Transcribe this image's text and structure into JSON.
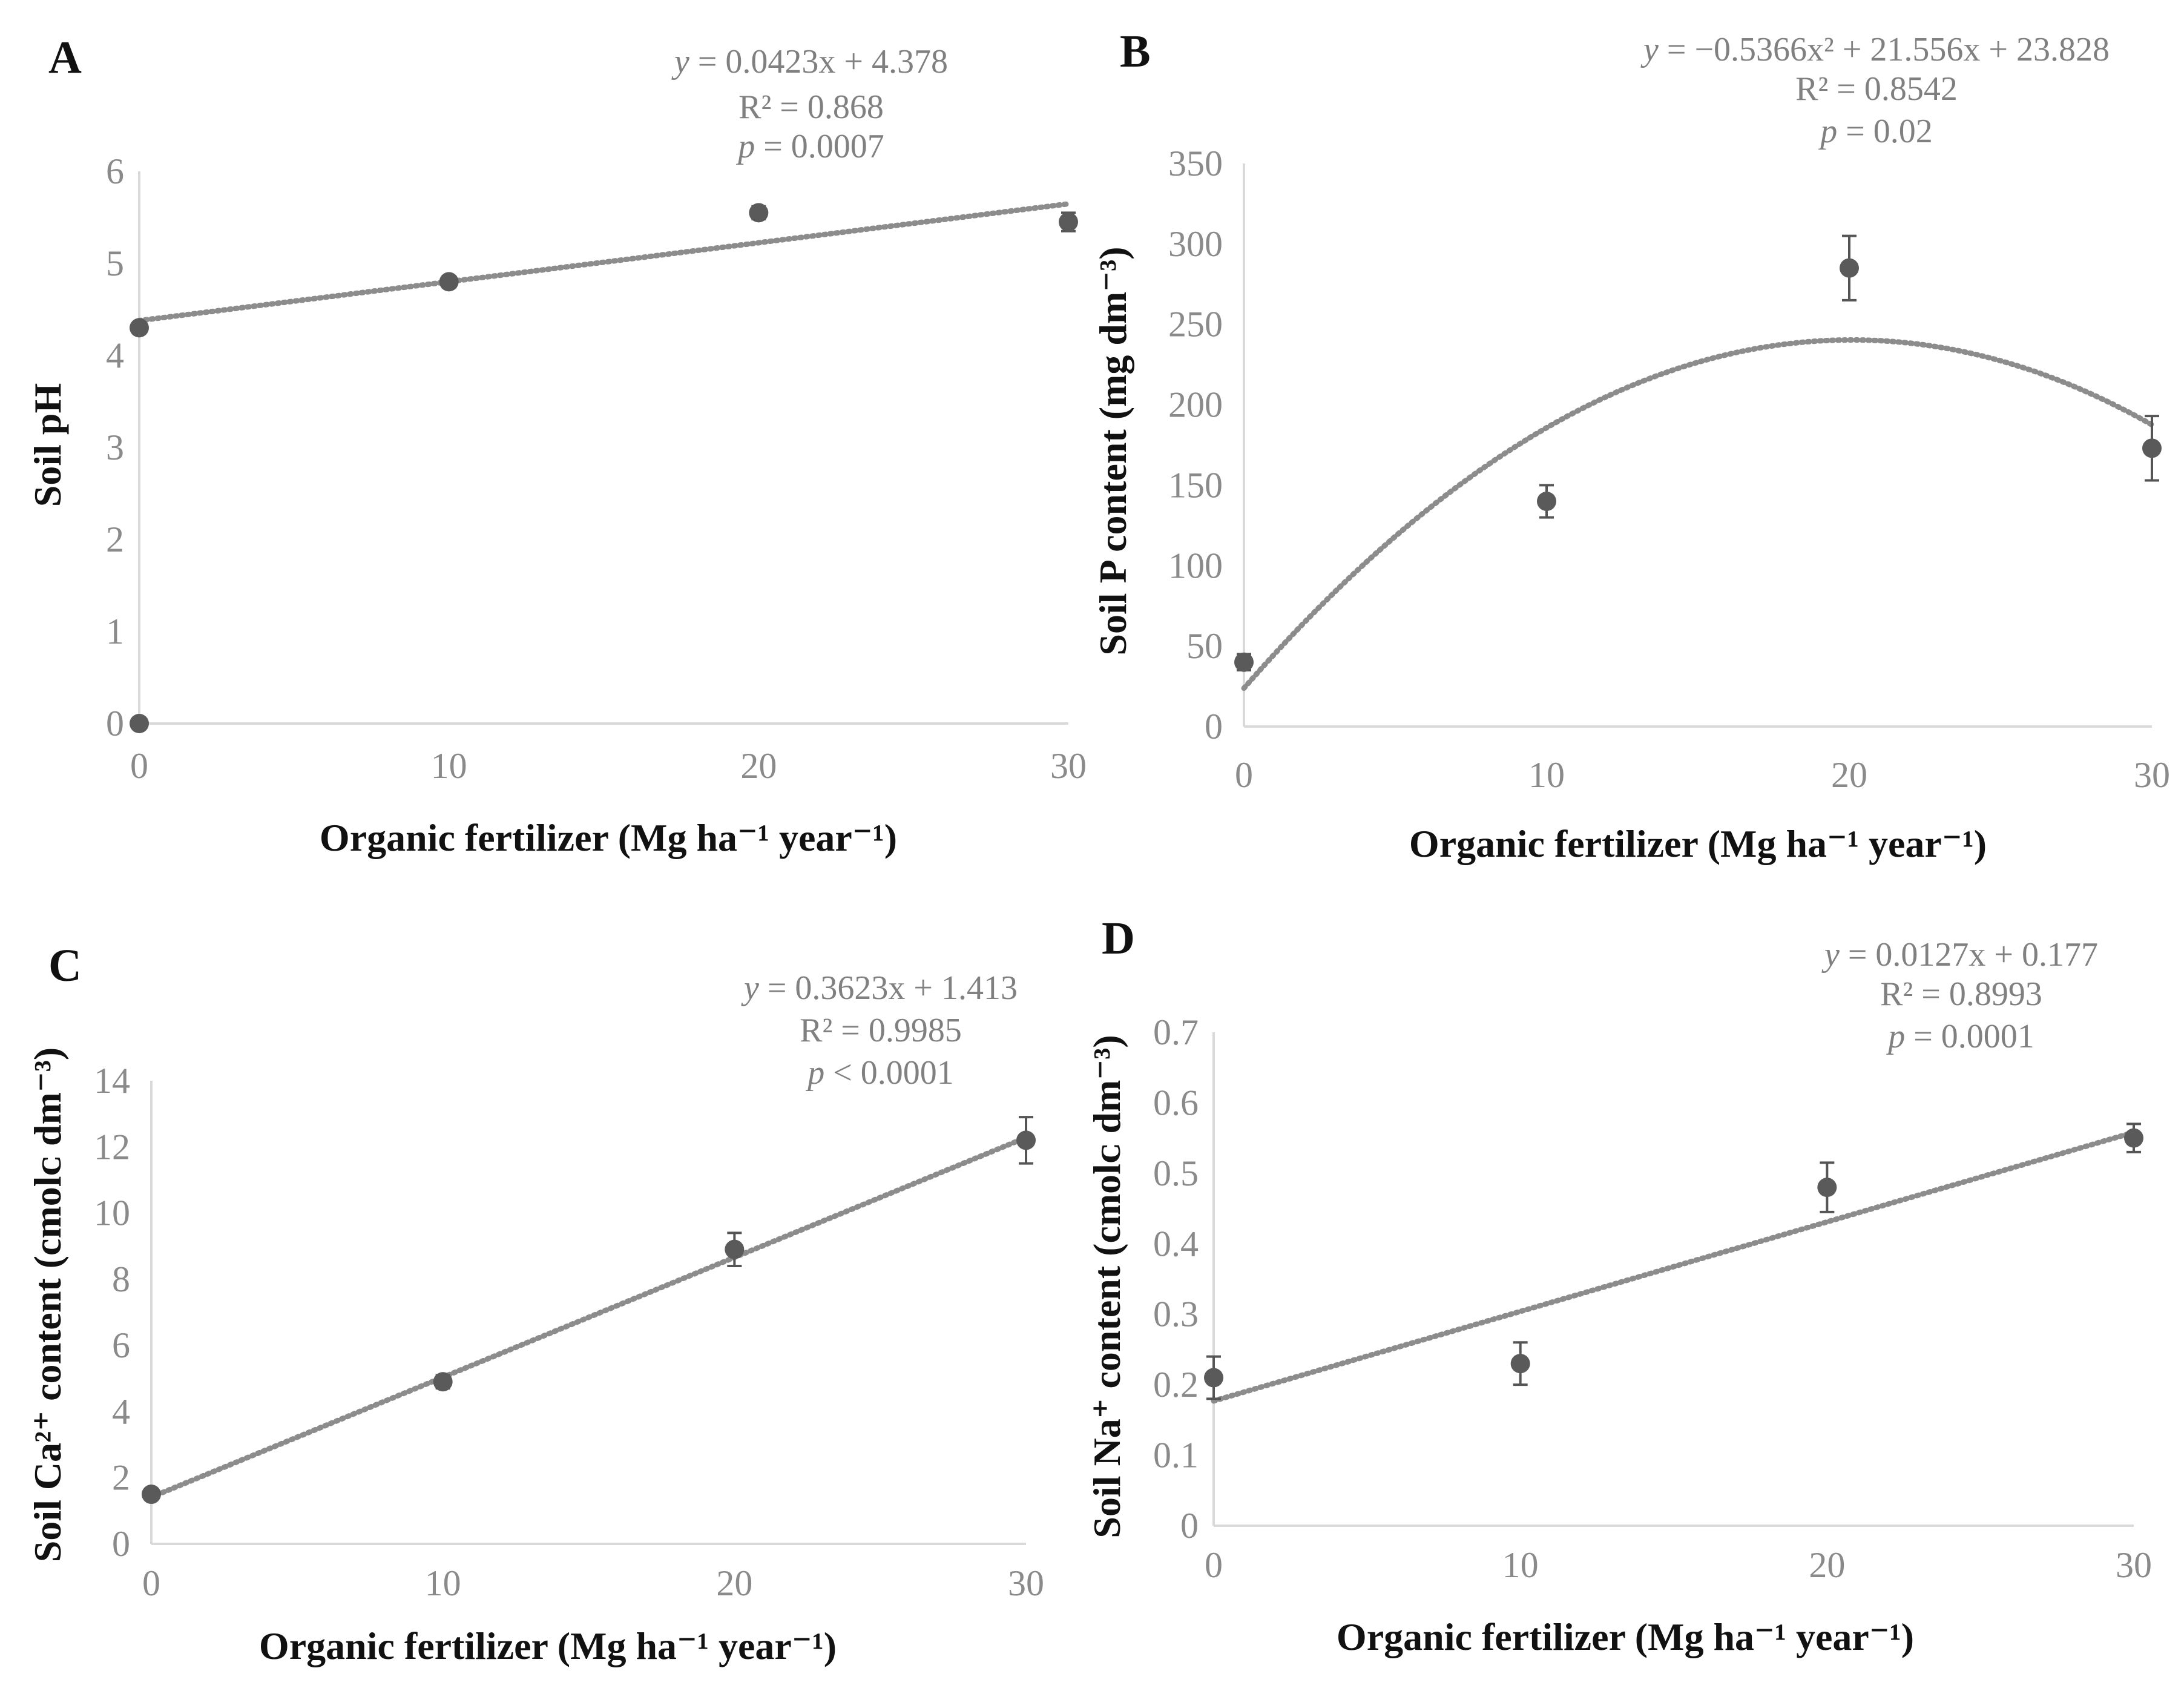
{
  "colors": {
    "point": "#5a5a5a",
    "trendline": "#8c8c8c",
    "axis": "#d9d9d9",
    "tick_text": "#8a8a8a",
    "equation_text": "#808080",
    "label_text": "#111111"
  },
  "chart_data": [
    {
      "id": "A",
      "panel_label": "A",
      "type": "scatter",
      "trend": "linear",
      "xlabel": "Organic fertilizer (Mg ha⁻¹ year⁻¹)",
      "ylabel": "Soil pH",
      "xlim": [
        0,
        30
      ],
      "ylim": [
        0,
        6
      ],
      "xticks": [
        0,
        10,
        20,
        30
      ],
      "yticks": [
        0,
        1,
        2,
        3,
        4,
        5,
        6
      ],
      "points": [
        {
          "x": 0,
          "y": 4.3,
          "err": 0.05
        },
        {
          "x": 10,
          "y": 4.8,
          "err": 0.06
        },
        {
          "x": 20,
          "y": 5.55,
          "err": 0.07
        },
        {
          "x": 30,
          "y": 5.45,
          "err": 0.1
        },
        {
          "x": 0,
          "y": 0,
          "err": 0
        }
      ],
      "coef": [
        4.378,
        0.0423
      ],
      "equation": {
        "y_lhs": "y",
        "y_rhs": " = 0.0423x + 4.378",
        "r2": "R² = 0.868",
        "p_lhs": "p",
        "p_rhs": " = 0.0007"
      }
    },
    {
      "id": "B",
      "panel_label": "B",
      "type": "scatter",
      "trend": "quadratic",
      "xlabel": "Organic fertilizer (Mg ha⁻¹ year⁻¹)",
      "ylabel": "Soil P content (mg dm⁻³)",
      "xlim": [
        0,
        30
      ],
      "ylim": [
        0,
        350
      ],
      "xticks": [
        0,
        10,
        20,
        30
      ],
      "yticks": [
        0,
        50,
        100,
        150,
        200,
        250,
        300,
        350
      ],
      "points": [
        {
          "x": 0,
          "y": 40,
          "err": 5
        },
        {
          "x": 10,
          "y": 140,
          "err": 10
        },
        {
          "x": 20,
          "y": 285,
          "err": 20
        },
        {
          "x": 30,
          "y": 173,
          "err": 20
        }
      ],
      "coef": [
        23.828,
        21.556,
        -0.5366
      ],
      "equation": {
        "y_lhs": "y",
        "y_rhs": " = −0.5366x² + 21.556x + 23.828",
        "r2": "R² = 0.8542",
        "p_lhs": "p",
        "p_rhs": " = 0.02"
      }
    },
    {
      "id": "C",
      "panel_label": "C",
      "type": "scatter",
      "trend": "linear",
      "xlabel": "Organic fertilizer (Mg ha⁻¹ year⁻¹)",
      "ylabel": "Soil Ca²⁺ content (cmolᴄ dm⁻³)",
      "xlim": [
        0,
        30
      ],
      "ylim": [
        0,
        14
      ],
      "xticks": [
        0,
        10,
        20,
        30
      ],
      "yticks": [
        0,
        2,
        4,
        6,
        8,
        10,
        12,
        14
      ],
      "points": [
        {
          "x": 0,
          "y": 1.5,
          "err": 0.1
        },
        {
          "x": 10,
          "y": 4.9,
          "err": 0.2
        },
        {
          "x": 20,
          "y": 8.9,
          "err": 0.5
        },
        {
          "x": 30,
          "y": 12.2,
          "err": 0.7
        }
      ],
      "coef": [
        1.413,
        0.3623
      ],
      "equation": {
        "y_lhs": "y",
        "y_rhs": " = 0.3623x + 1.413",
        "r2": "R² = 0.9985",
        "p_lhs": "p",
        "p_rhs": " < 0.0001"
      }
    },
    {
      "id": "D",
      "panel_label": "D",
      "type": "scatter",
      "trend": "linear",
      "xlabel": "Organic fertilizer (Mg ha⁻¹ year⁻¹)",
      "ylabel": "Soil Na⁺ content (cmolᴄ dm⁻³)",
      "xlim": [
        0,
        30
      ],
      "ylim": [
        0,
        0.7
      ],
      "xticks": [
        0,
        10,
        20,
        30
      ],
      "yticks": [
        0,
        0.1,
        0.2,
        0.3,
        0.4,
        0.5,
        0.6,
        0.7
      ],
      "points": [
        {
          "x": 0,
          "y": 0.21,
          "err": 0.03
        },
        {
          "x": 10,
          "y": 0.23,
          "err": 0.03
        },
        {
          "x": 20,
          "y": 0.48,
          "err": 0.035
        },
        {
          "x": 30,
          "y": 0.55,
          "err": 0.02
        }
      ],
      "coef": [
        0.177,
        0.0127
      ],
      "equation": {
        "y_lhs": "y",
        "y_rhs": " = 0.0127x + 0.177",
        "r2": "R² = 0.8993",
        "p_lhs": "p",
        "p_rhs": " = 0.0001"
      }
    }
  ]
}
